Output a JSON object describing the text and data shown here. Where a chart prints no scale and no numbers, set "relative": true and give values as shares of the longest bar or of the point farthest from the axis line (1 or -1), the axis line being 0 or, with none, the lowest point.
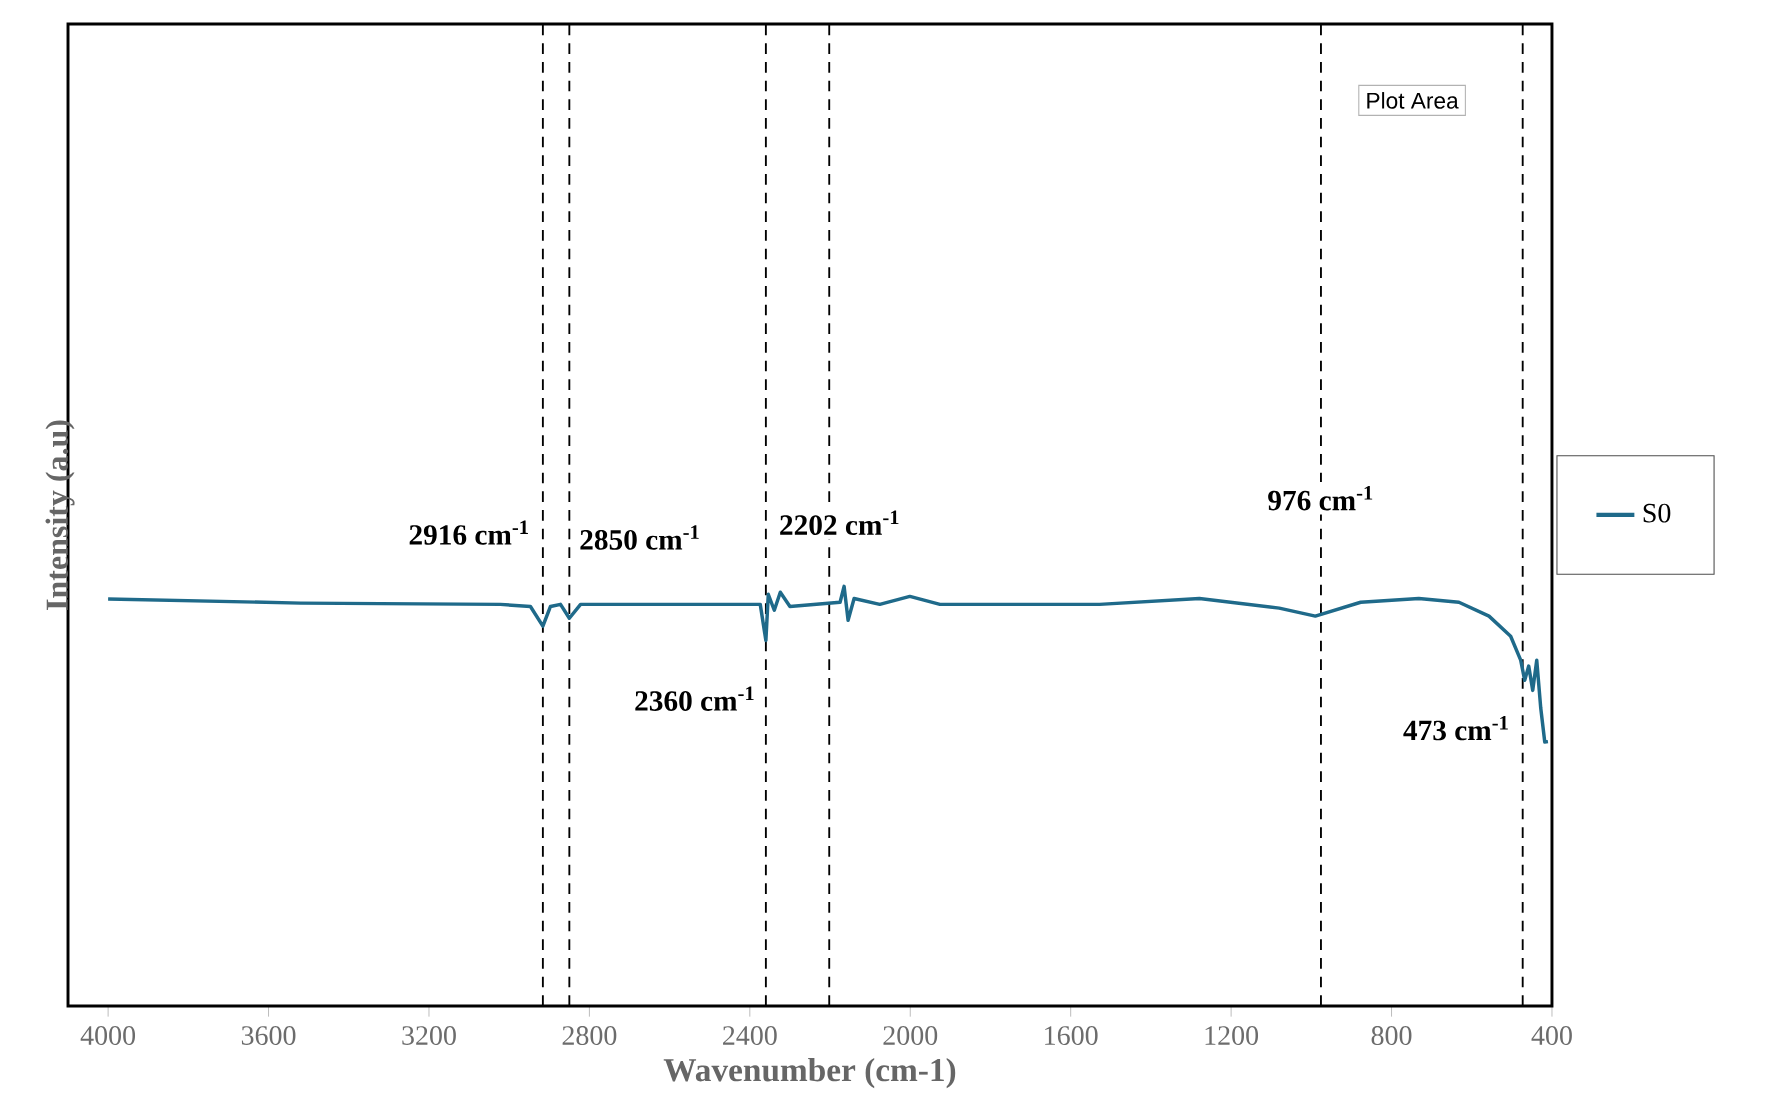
{
  "chart_data": {
    "type": "line",
    "relative": true,
    "xlabel": "Wavenumber (cm-1)",
    "ylabel": "Intensity (a.u)",
    "xlim": [
      4100,
      400
    ],
    "xticks": [
      4000,
      3600,
      3200,
      2800,
      2400,
      2000,
      1600,
      1200,
      800,
      400
    ],
    "x": [
      4000,
      3520,
      3022,
      2947,
      2916,
      2897,
      2872,
      2850,
      2822,
      2374,
      2360,
      2354,
      2339,
      2324,
      2300,
      2175,
      2165,
      2155,
      2140,
      2076,
      2001,
      1926,
      1777,
      1528,
      1279,
      1080,
      990,
      877,
      732,
      632,
      557,
      503,
      478,
      468,
      458,
      448,
      438,
      428,
      418,
      410
    ],
    "series": [
      {
        "name": "S0",
        "color": "#1f6a8a",
        "values": [
          0.97,
          0.96,
          0.957,
          0.952,
          0.905,
          0.952,
          0.957,
          0.924,
          0.957,
          0.957,
          0.871,
          0.981,
          0.943,
          0.986,
          0.952,
          0.962,
          1.0,
          0.919,
          0.971,
          0.957,
          0.976,
          0.957,
          0.957,
          0.957,
          0.971,
          0.948,
          0.929,
          0.962,
          0.971,
          0.962,
          0.929,
          0.881,
          0.824,
          0.776,
          0.81,
          0.752,
          0.824,
          0.71,
          0.629,
          0.63
        ]
      }
    ],
    "ref_lines": [
      {
        "axis": "x",
        "value": 2916,
        "line_style": "dashed",
        "color": "#000000",
        "label": "2916 cm$^{-1}$"
      },
      {
        "axis": "x",
        "value": 2850,
        "line_style": "dashed",
        "color": "#000000",
        "label": "2850 cm$^{-1}$"
      },
      {
        "axis": "x",
        "value": 2360,
        "line_style": "dashed",
        "color": "#000000",
        "label": "2360 cm$^{-1}$"
      },
      {
        "axis": "x",
        "value": 2202,
        "line_style": "dashed",
        "color": "#000000",
        "label": "2202 cm$^{-1}$"
      },
      {
        "axis": "x",
        "value": 976,
        "line_style": "dashed",
        "color": "#000000",
        "label": "976 cm$^{-1}$"
      },
      {
        "axis": "x",
        "value": 473,
        "line_style": "dashed",
        "color": "#000000",
        "label": "473 cm$^{-1}$"
      }
    ],
    "annotations": [
      "Plot Area"
    ],
    "legend": "right"
  }
}
